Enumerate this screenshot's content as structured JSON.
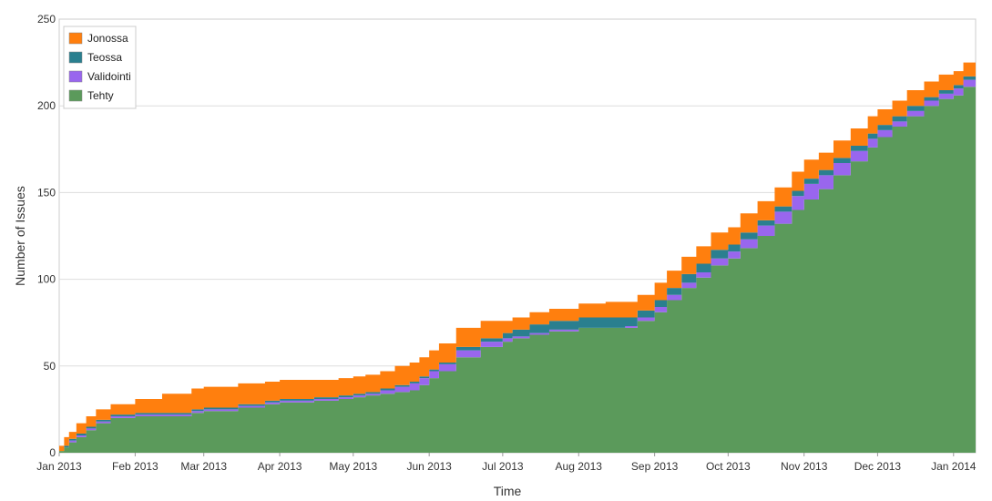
{
  "chart_data": {
    "type": "area",
    "stacked": true,
    "xlabel": "Time",
    "ylabel": "Number of Issues",
    "ylim": [
      0,
      250
    ],
    "yticks": [
      0,
      50,
      100,
      150,
      200,
      250
    ],
    "xlim": [
      "2013-01-01",
      "2014-01-10"
    ],
    "xticks": [
      {
        "date": "2013-01-01",
        "label": "Jan 2013"
      },
      {
        "date": "2013-02-01",
        "label": "Feb 2013"
      },
      {
        "date": "2013-03-01",
        "label": "Mar 2013"
      },
      {
        "date": "2013-04-01",
        "label": "Apr 2013"
      },
      {
        "date": "2013-05-01",
        "label": "May 2013"
      },
      {
        "date": "2013-06-01",
        "label": "Jun 2013"
      },
      {
        "date": "2013-07-01",
        "label": "Jul 2013"
      },
      {
        "date": "2013-08-01",
        "label": "Aug 2013"
      },
      {
        "date": "2013-09-01",
        "label": "Sep 2013"
      },
      {
        "date": "2013-10-01",
        "label": "Oct 2013"
      },
      {
        "date": "2013-11-01",
        "label": "Nov 2013"
      },
      {
        "date": "2013-12-01",
        "label": "Dec 2013"
      },
      {
        "date": "2014-01-01",
        "label": "Jan 2014"
      }
    ],
    "grid": true,
    "legend_position": "top-left",
    "x": [
      "2013-01-01",
      "2013-01-03",
      "2013-01-05",
      "2013-01-08",
      "2013-01-12",
      "2013-01-16",
      "2013-01-22",
      "2013-02-01",
      "2013-02-12",
      "2013-02-24",
      "2013-03-01",
      "2013-03-15",
      "2013-03-26",
      "2013-04-01",
      "2013-04-15",
      "2013-04-25",
      "2013-05-01",
      "2013-05-06",
      "2013-05-12",
      "2013-05-18",
      "2013-05-24",
      "2013-05-28",
      "2013-06-01",
      "2013-06-05",
      "2013-06-12",
      "2013-06-22",
      "2013-07-01",
      "2013-07-05",
      "2013-07-12",
      "2013-07-20",
      "2013-08-01",
      "2013-08-12",
      "2013-08-20",
      "2013-08-25",
      "2013-09-01",
      "2013-09-06",
      "2013-09-12",
      "2013-09-18",
      "2013-09-24",
      "2013-10-01",
      "2013-10-06",
      "2013-10-13",
      "2013-10-20",
      "2013-10-27",
      "2013-11-01",
      "2013-11-07",
      "2013-11-13",
      "2013-11-20",
      "2013-11-27",
      "2013-12-01",
      "2013-12-07",
      "2013-12-13",
      "2013-12-20",
      "2013-12-26",
      "2014-01-01",
      "2014-01-05",
      "2014-01-10"
    ],
    "series": [
      {
        "name": "Tehty",
        "color": "#5b9a5b",
        "values": [
          1,
          3,
          6,
          9,
          13,
          17,
          20,
          21,
          21,
          23,
          24,
          26,
          28,
          29,
          30,
          31,
          32,
          33,
          34,
          35,
          36,
          39,
          43,
          47,
          55,
          61,
          64,
          66,
          68,
          70,
          72,
          72,
          72,
          76,
          81,
          88,
          95,
          101,
          108,
          112,
          118,
          125,
          132,
          140,
          146,
          152,
          160,
          168,
          176,
          182,
          188,
          194,
          200,
          204,
          206,
          211,
          217
        ]
      },
      {
        "name": "Validointi",
        "color": "#9966ee",
        "values": [
          0,
          0,
          1,
          1,
          1,
          1,
          1,
          1,
          1,
          1,
          1,
          1,
          1,
          1,
          1,
          1,
          1,
          1,
          2,
          3,
          4,
          4,
          4,
          4,
          4,
          3,
          2,
          1,
          1,
          1,
          0,
          0,
          1,
          2,
          3,
          3,
          3,
          3,
          4,
          4,
          5,
          6,
          7,
          8,
          9,
          8,
          7,
          6,
          5,
          4,
          3,
          3,
          3,
          3,
          4,
          4,
          4
        ]
      },
      {
        "name": "Teossa",
        "color": "#2a7f8f",
        "values": [
          0,
          1,
          1,
          1,
          1,
          1,
          1,
          1,
          1,
          1,
          1,
          1,
          1,
          1,
          1,
          1,
          1,
          1,
          1,
          1,
          1,
          1,
          1,
          1,
          2,
          2,
          3,
          4,
          5,
          5,
          6,
          6,
          5,
          4,
          4,
          4,
          5,
          5,
          5,
          4,
          4,
          3,
          3,
          3,
          3,
          3,
          3,
          3,
          3,
          3,
          3,
          3,
          2,
          2,
          2,
          2,
          2
        ]
      },
      {
        "name": "Jonossa",
        "color": "#ff7f0e",
        "values": [
          3,
          5,
          4,
          6,
          6,
          6,
          6,
          8,
          11,
          12,
          12,
          12,
          11,
          11,
          10,
          10,
          10,
          10,
          10,
          11,
          11,
          11,
          11,
          11,
          11,
          10,
          7,
          7,
          7,
          7,
          8,
          9,
          9,
          9,
          10,
          10,
          10,
          10,
          10,
          10,
          11,
          11,
          11,
          11,
          11,
          10,
          10,
          10,
          10,
          9,
          9,
          9,
          9,
          9,
          8,
          8,
          7
        ]
      }
    ],
    "legend_order": [
      "Jonossa",
      "Teossa",
      "Validointi",
      "Tehty"
    ]
  }
}
